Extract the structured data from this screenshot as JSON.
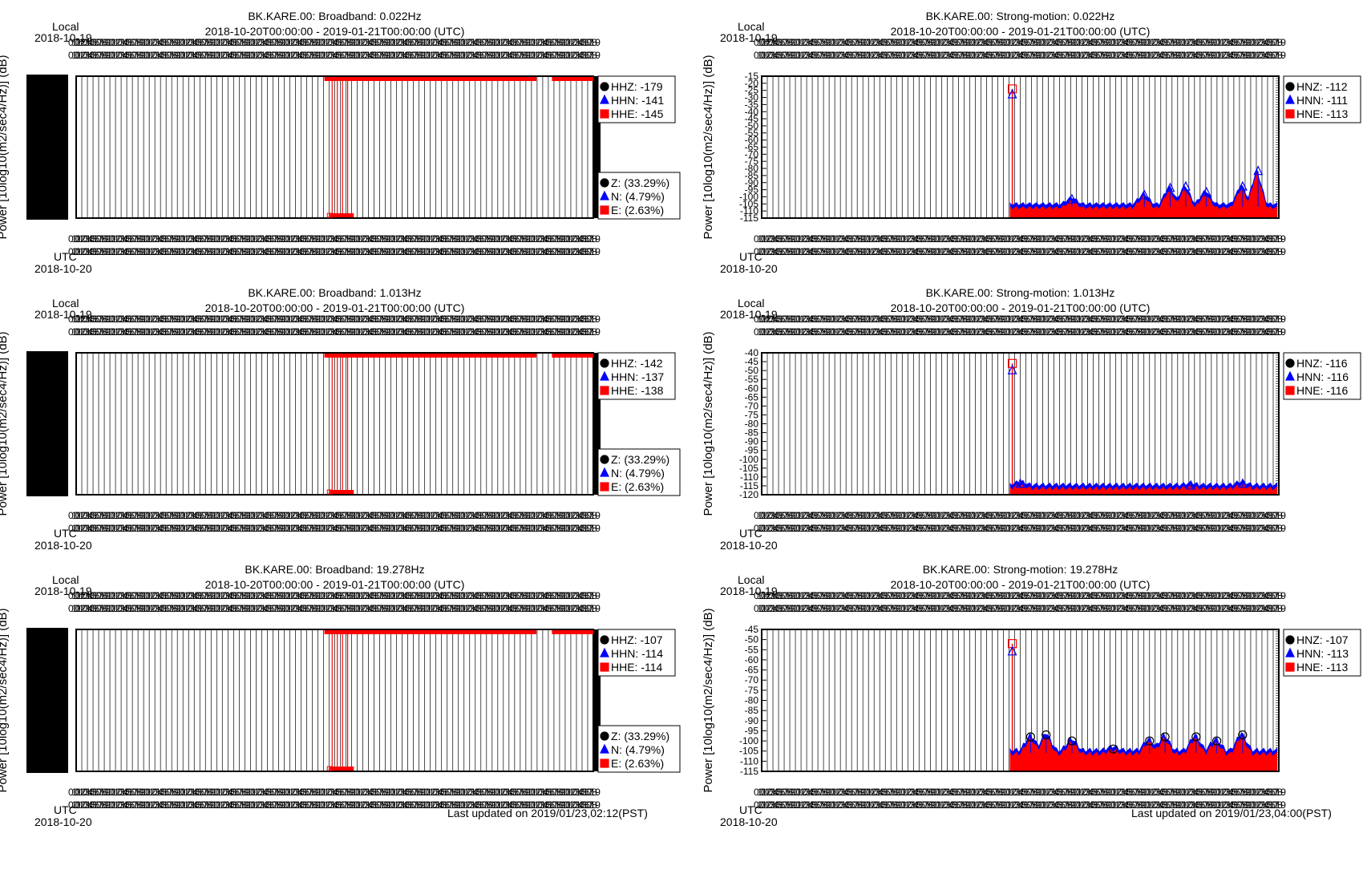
{
  "footer": {
    "broadband_updated": "Last updated on 2019/01/23,02:12(PST)",
    "strongmotion_updated": "Last updated on 2019/01/23,04:00(PST)"
  },
  "chart_data": [
    {
      "type": "scatter",
      "title": "BK.KARE.00: Broadband: 0.022Hz",
      "subtitle": "2018-10-20T00:00:00 - 2019-01-21T00:00:00 (UTC)",
      "top_axis_label": "Local",
      "top_axis_date": "2018-10-19",
      "bottom_axis_label": "UTC",
      "bottom_axis_date": "2018-10-20",
      "ylabel": "Power [10log10(m2/sec4/Hz)] (dB)",
      "yticks": [],
      "ylim": [
        0,
        1
      ],
      "legend": [
        {
          "marker": "circle",
          "color": "#000000",
          "label": "HHZ: -179"
        },
        {
          "marker": "triangle",
          "color": "#0000ff",
          "label": "HHN: -141"
        },
        {
          "marker": "square",
          "color": "#ff0000",
          "label": "HHE: -145"
        }
      ],
      "legend2": [
        {
          "marker": "circle",
          "color": "#000000",
          "label": "Z: (33.29%)"
        },
        {
          "marker": "triangle",
          "color": "#0000ff",
          "label": "N: (4.79%)"
        },
        {
          "marker": "square",
          "color": "#ff0000",
          "label": "E: (2.63%)"
        }
      ],
      "series": [
        {
          "values_top": [
            0.48,
            0.89
          ],
          "values_top2": [
            0.92,
            1.0
          ],
          "spikes": [
            0.495,
            0.505,
            0.515,
            0.525
          ]
        }
      ]
    },
    {
      "type": "scatter",
      "title": "BK.KARE.00: Strong-motion: 0.022Hz",
      "subtitle": "2018-10-20T00:00:00 - 2019-01-21T00:00:00 (UTC)",
      "top_axis_label": "Local",
      "top_axis_date": "2018-10-19",
      "bottom_axis_label": "UTC",
      "bottom_axis_date": "2018-10-20",
      "ylabel": "Power [10log10(m2/sec4/Hz)] (dB)",
      "yticks": [
        "-15",
        "-20",
        "-25",
        "-30",
        "-35",
        "-40",
        "-45",
        "-50",
        "-55",
        "-60",
        "-65",
        "-70",
        "-75",
        "-80",
        "-85",
        "-90",
        "-95",
        "-100",
        "-105",
        "-110",
        "-115"
      ],
      "ylim": [
        -115,
        -15
      ],
      "legend": [
        {
          "marker": "circle",
          "color": "#000000",
          "label": "HNZ: -112"
        },
        {
          "marker": "triangle",
          "color": "#0000ff",
          "label": "HNN: -111"
        },
        {
          "marker": "square",
          "color": "#ff0000",
          "label": "HNE: -113"
        }
      ],
      "data_start": 0.48,
      "base": -107,
      "spike": -24,
      "peaks": [
        [
          0.6,
          -102
        ],
        [
          0.74,
          -99
        ],
        [
          0.79,
          -94
        ],
        [
          0.82,
          -93
        ],
        [
          0.86,
          -97
        ],
        [
          0.93,
          -93
        ],
        [
          0.96,
          -82
        ]
      ]
    },
    {
      "type": "scatter",
      "title": "BK.KARE.00: Broadband: 1.013Hz",
      "subtitle": "2018-10-20T00:00:00 - 2019-01-21T00:00:00 (UTC)",
      "top_axis_label": "Local",
      "top_axis_date": "2018-10-19",
      "bottom_axis_label": "UTC",
      "bottom_axis_date": "2018-10-20",
      "ylabel": "Power [10log10(m2/sec4/Hz)] (dB)",
      "yticks": [],
      "ylim": [
        0,
        1
      ],
      "legend": [
        {
          "marker": "circle",
          "color": "#000000",
          "label": "HHZ: -142"
        },
        {
          "marker": "triangle",
          "color": "#0000ff",
          "label": "HHN: -137"
        },
        {
          "marker": "square",
          "color": "#ff0000",
          "label": "HHE: -138"
        }
      ],
      "legend2": [
        {
          "marker": "circle",
          "color": "#000000",
          "label": "Z: (33.29%)"
        },
        {
          "marker": "triangle",
          "color": "#0000ff",
          "label": "N: (4.79%)"
        },
        {
          "marker": "square",
          "color": "#ff0000",
          "label": "E: (2.63%)"
        }
      ]
    },
    {
      "type": "scatter",
      "title": "BK.KARE.00: Strong-motion: 1.013Hz",
      "subtitle": "2018-10-20T00:00:00 - 2019-01-21T00:00:00 (UTC)",
      "top_axis_label": "Local",
      "top_axis_date": "2018-10-19",
      "bottom_axis_label": "UTC",
      "bottom_axis_date": "2018-10-20",
      "ylabel": "Power [10log10(m2/sec4/Hz)] (dB)",
      "yticks": [
        "-40",
        "-45",
        "-50",
        "-55",
        "-60",
        "-65",
        "-70",
        "-75",
        "-80",
        "-85",
        "-90",
        "-95",
        "-100",
        "-105",
        "-110",
        "-115",
        "-120"
      ],
      "ylim": [
        -120,
        -40
      ],
      "legend": [
        {
          "marker": "circle",
          "color": "#000000",
          "label": "HNZ: -116"
        },
        {
          "marker": "triangle",
          "color": "#0000ff",
          "label": "HNN: -116"
        },
        {
          "marker": "square",
          "color": "#ff0000",
          "label": "HNE: -116"
        }
      ],
      "data_start": 0.48,
      "base": -116,
      "spike": -46,
      "peaks": [
        [
          0.5,
          -114
        ],
        [
          0.83,
          -115
        ],
        [
          0.93,
          -114
        ]
      ]
    },
    {
      "type": "scatter",
      "title": "BK.KARE.00: Broadband: 19.278Hz",
      "subtitle": "2018-10-20T00:00:00 - 2019-01-21T00:00:00 (UTC)",
      "top_axis_label": "Local",
      "top_axis_date": "2018-10-19",
      "bottom_axis_label": "UTC",
      "bottom_axis_date": "2018-10-20",
      "ylabel": "Power [10log10(m2/sec4/Hz)] (dB)",
      "yticks": [],
      "ylim": [
        0,
        1
      ],
      "legend": [
        {
          "marker": "circle",
          "color": "#000000",
          "label": "HHZ: -107"
        },
        {
          "marker": "triangle",
          "color": "#0000ff",
          "label": "HHN: -114"
        },
        {
          "marker": "square",
          "color": "#ff0000",
          "label": "HHE: -114"
        }
      ],
      "legend2": [
        {
          "marker": "circle",
          "color": "#000000",
          "label": "Z: (33.29%)"
        },
        {
          "marker": "triangle",
          "color": "#0000ff",
          "label": "N: (4.79%)"
        },
        {
          "marker": "square",
          "color": "#ff0000",
          "label": "E: (2.63%)"
        }
      ]
    },
    {
      "type": "scatter",
      "title": "BK.KARE.00: Strong-motion: 19.278Hz",
      "subtitle": "2018-10-20T00:00:00 - 2019-01-21T00:00:00 (UTC)",
      "top_axis_label": "Local",
      "top_axis_date": "2018-10-19",
      "bottom_axis_label": "UTC",
      "bottom_axis_date": "2018-10-20",
      "ylabel": "Power [10log10(m2/sec4/Hz)] (dB)",
      "yticks": [
        "-45",
        "-50",
        "-55",
        "-60",
        "-65",
        "-70",
        "-75",
        "-80",
        "-85",
        "-90",
        "-95",
        "-100",
        "-105",
        "-110",
        "-115"
      ],
      "ylim": [
        -115,
        -45
      ],
      "legend": [
        {
          "marker": "circle",
          "color": "#000000",
          "label": "HNZ: -107"
        },
        {
          "marker": "triangle",
          "color": "#0000ff",
          "label": "HNN: -113"
        },
        {
          "marker": "square",
          "color": "#ff0000",
          "label": "HNE: -113"
        }
      ],
      "data_start": 0.48,
      "base": -106,
      "spike": -52,
      "peaks": [
        [
          0.52,
          -98
        ],
        [
          0.55,
          -97
        ],
        [
          0.6,
          -100
        ],
        [
          0.68,
          -104
        ],
        [
          0.75,
          -100
        ],
        [
          0.78,
          -98
        ],
        [
          0.84,
          -98
        ],
        [
          0.88,
          -100
        ],
        [
          0.93,
          -97
        ]
      ]
    }
  ]
}
